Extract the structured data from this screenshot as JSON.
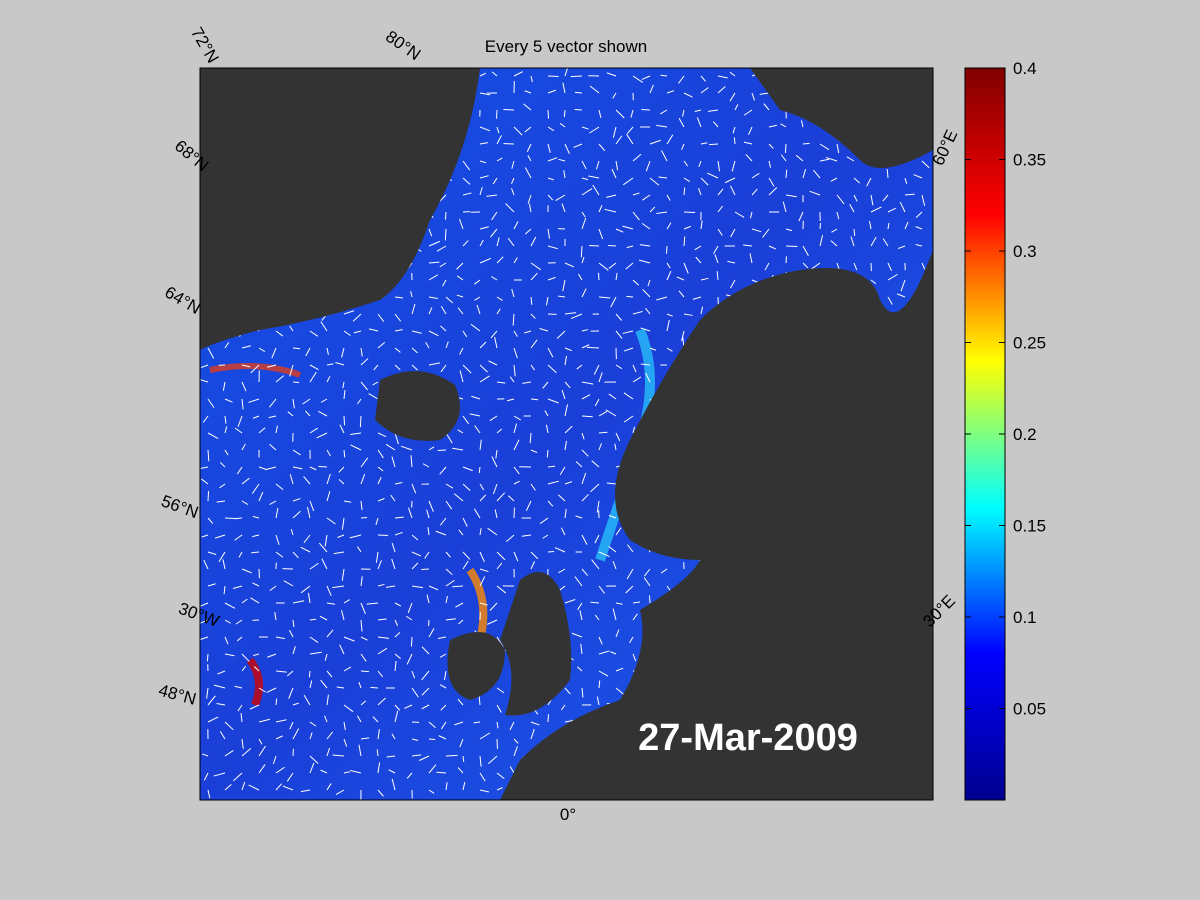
{
  "title": "Every 5 vector shown",
  "date_label": "27-Mar-2009",
  "graticule_labels": [
    "72°N",
    "80°N",
    "68°N",
    "64°N",
    "56°N",
    "30°W",
    "48°N",
    "0°",
    "60°E",
    "30°E"
  ],
  "colorbar": {
    "colormap": "jet",
    "lim": [
      0,
      0.4
    ],
    "ticks": [
      0.05,
      0.1,
      0.15,
      0.2,
      0.25,
      0.3,
      0.35,
      0.4
    ]
  }
}
